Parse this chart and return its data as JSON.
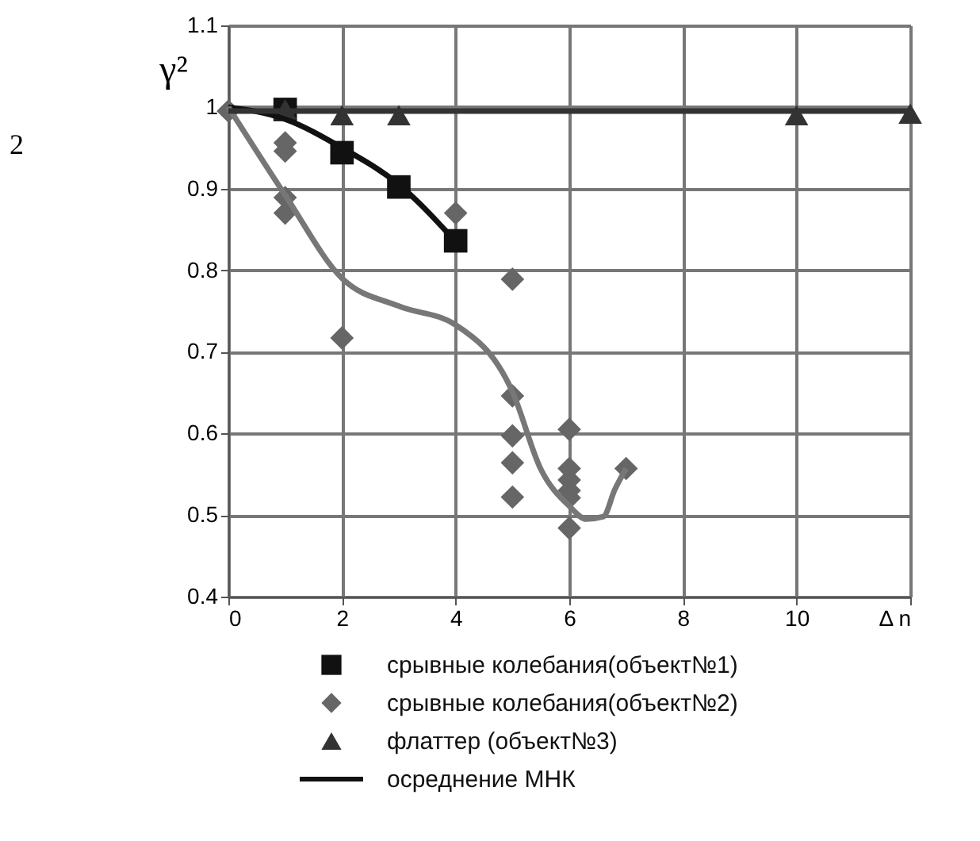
{
  "chart_data": {
    "type": "scatter",
    "ylabel": "γ²",
    "annotations": [
      "2"
    ],
    "xlim": [
      0,
      12
    ],
    "xticks": [
      0,
      2,
      4,
      6,
      8,
      10,
      {
        "value": 12,
        "label": "Δ n"
      }
    ],
    "ylim": [
      0.4,
      1.1
    ],
    "yticks": [
      0.4,
      0.5,
      0.6,
      0.7,
      0.8,
      0.9,
      1,
      1.1
    ],
    "grid": true,
    "legend": "bottom",
    "series": [
      {
        "name": "срывные колебания(объект№1)",
        "marker": "square",
        "color": "#111111",
        "x": [
          1,
          2,
          3,
          4
        ],
        "values": [
          0.997,
          0.944,
          0.902,
          0.836
        ]
      },
      {
        "name": "срывные колебания(объект№2)",
        "marker": "diamond",
        "color": "#666666",
        "x": [
          0,
          1,
          1,
          1,
          1,
          2,
          4,
          5,
          5,
          5,
          5,
          5,
          6,
          6,
          6,
          6,
          6,
          6,
          7
        ],
        "values": [
          0.995,
          0.956,
          0.946,
          0.889,
          0.87,
          0.717,
          0.87,
          0.789,
          0.646,
          0.597,
          0.564,
          0.522,
          0.605,
          0.557,
          0.543,
          0.53,
          0.521,
          0.484,
          0.557
        ]
      },
      {
        "name": "флаттер (объект№3)",
        "marker": "triangle",
        "color": "#333333",
        "x": [
          1,
          2,
          3,
          10,
          12
        ],
        "values": [
          0.997,
          0.99,
          0.99,
          0.99,
          0.992
        ]
      },
      {
        "name": "осреднение МНК",
        "type": "line",
        "color": "#111111",
        "x": [
          0,
          1,
          2,
          3,
          4
        ],
        "values": [
          1,
          0.985,
          0.95,
          0.905,
          0.835
        ]
      },
      {
        "type": "line",
        "color": "#777777",
        "x": [
          0,
          1,
          2,
          3,
          4,
          5,
          5.5,
          6,
          6.3,
          6.6,
          6.8,
          7
        ],
        "values": [
          1,
          0.892,
          0.79,
          0.756,
          0.733,
          0.651,
          0.556,
          0.511,
          0.495,
          0.498,
          0.531,
          0.557
        ]
      },
      {
        "type": "line",
        "color": "#333333",
        "x": [
          0,
          12
        ],
        "values": [
          0.995,
          0.995
        ]
      }
    ]
  }
}
